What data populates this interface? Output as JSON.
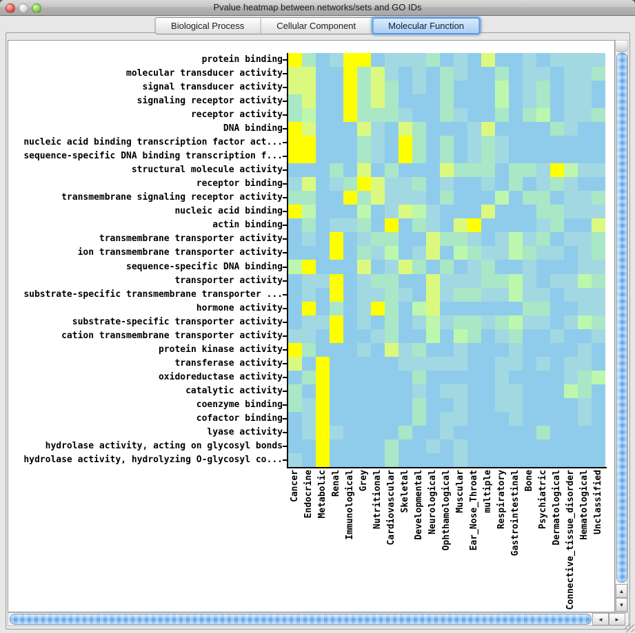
{
  "window": {
    "title": "Pvalue heatmap between networks/sets and GO IDs"
  },
  "tabs": [
    {
      "label": "Biological Process",
      "selected": false
    },
    {
      "label": "Cellular Component",
      "selected": false
    },
    {
      "label": "Molecular Function",
      "selected": true
    }
  ],
  "icons": {
    "up": "▲",
    "down": "▼",
    "left": "◄",
    "right": "►",
    "close": "close-circle",
    "minimize": "minimize-circle",
    "zoom": "zoom-circle"
  },
  "chart_data": {
    "type": "heatmap",
    "title": "Pvalue heatmap between networks/sets and GO IDs",
    "xlabel": "",
    "ylabel": "",
    "legend_position": "none",
    "grid": false,
    "palette": [
      "#8fccec",
      "#a2d8e2",
      "#a9e7c6",
      "#bdf7ae",
      "#dcf97f",
      "#ffff00"
    ],
    "palette_meaning": "0=low significance (blue) to 5=high significance (yellow)",
    "columns": [
      "Cancer",
      "Endocrine",
      "Metabolic",
      "Renal",
      "Immunological",
      "Grey",
      "Nutritional",
      "Cardiovascular",
      "Skeletal",
      "Developmental",
      "Neurological",
      "Ophthamological",
      "Muscular",
      "Ear_Nose_Throat",
      "multiple",
      "Respiratory",
      "Gastrointestinal",
      "Bone",
      "Psychiatric",
      "Dermatological",
      "Connective_tissue_disorder",
      "Hematological",
      "Unclassified"
    ],
    "rows": [
      "protein binding",
      "molecular transducer activity",
      "signal transducer activity",
      "signaling receptor activity",
      "receptor activity",
      "DNA binding",
      "nucleic acid binding transcription factor act...",
      "sequence-specific DNA binding transcription f...",
      "structural molecule activity",
      "receptor binding",
      "transmembrane signaling receptor activity",
      "nucleic acid binding",
      "actin binding",
      "transmembrane transporter activity",
      "ion transmembrane transporter activity",
      "sequence-specific DNA binding",
      "transporter activity",
      "substrate-specific transmembrane transporter ...",
      "hormone activity",
      "substrate-specific transporter activity",
      "cation transmembrane transporter activity",
      "protein kinase activity",
      "transferase activity",
      "oxidoreductase activity",
      "catalytic activity",
      "coenzyme binding",
      "cofactor binding",
      "lyase activity",
      "hydrolase activity, acting on glycosyl bonds",
      "hydrolase activity, hydrolyzing O-glycosyl co..."
    ],
    "cells": [
      [
        5,
        2,
        0,
        1,
        5,
        5,
        0,
        1,
        1,
        1,
        2,
        0,
        1,
        0,
        4,
        0,
        0,
        1,
        0,
        1,
        1,
        1,
        1
      ],
      [
        4,
        4,
        0,
        0,
        5,
        2,
        4,
        1,
        0,
        1,
        0,
        2,
        1,
        0,
        0,
        2,
        0,
        1,
        1,
        0,
        1,
        1,
        2
      ],
      [
        4,
        4,
        0,
        0,
        5,
        2,
        4,
        2,
        0,
        1,
        0,
        2,
        0,
        0,
        0,
        3,
        0,
        1,
        2,
        0,
        1,
        1,
        0
      ],
      [
        2,
        4,
        0,
        0,
        5,
        2,
        4,
        2,
        0,
        0,
        0,
        2,
        0,
        0,
        0,
        3,
        0,
        1,
        2,
        0,
        1,
        1,
        0
      ],
      [
        2,
        3,
        0,
        0,
        5,
        2,
        2,
        2,
        1,
        0,
        0,
        2,
        1,
        0,
        0,
        2,
        0,
        2,
        3,
        0,
        1,
        1,
        2
      ],
      [
        5,
        4,
        0,
        0,
        0,
        4,
        1,
        0,
        4,
        2,
        0,
        0,
        0,
        1,
        4,
        0,
        0,
        0,
        0,
        2,
        1,
        0,
        0
      ],
      [
        5,
        5,
        0,
        0,
        0,
        2,
        1,
        0,
        5,
        2,
        0,
        2,
        0,
        1,
        2,
        1,
        0,
        0,
        0,
        0,
        0,
        0,
        0
      ],
      [
        5,
        5,
        0,
        0,
        0,
        2,
        1,
        0,
        5,
        2,
        0,
        2,
        0,
        1,
        2,
        1,
        0,
        0,
        0,
        0,
        0,
        0,
        0
      ],
      [
        0,
        0,
        0,
        2,
        0,
        4,
        0,
        2,
        0,
        0,
        0,
        4,
        2,
        2,
        2,
        0,
        2,
        2,
        1,
        5,
        3,
        1,
        1
      ],
      [
        1,
        4,
        0,
        1,
        2,
        5,
        4,
        1,
        1,
        2,
        0,
        1,
        0,
        0,
        1,
        0,
        2,
        0,
        1,
        2,
        1,
        0,
        0
      ],
      [
        2,
        2,
        0,
        0,
        5,
        2,
        4,
        1,
        1,
        1,
        0,
        2,
        0,
        0,
        0,
        3,
        0,
        2,
        2,
        0,
        1,
        1,
        2
      ],
      [
        5,
        3,
        0,
        0,
        0,
        3,
        0,
        1,
        4,
        3,
        1,
        0,
        0,
        0,
        4,
        0,
        0,
        0,
        2,
        2,
        1,
        1,
        1
      ],
      [
        0,
        2,
        0,
        1,
        1,
        2,
        0,
        5,
        0,
        2,
        1,
        0,
        4,
        5,
        0,
        0,
        0,
        0,
        1,
        2,
        0,
        0,
        4
      ],
      [
        0,
        1,
        0,
        5,
        0,
        1,
        2,
        2,
        0,
        0,
        4,
        2,
        2,
        1,
        0,
        1,
        3,
        1,
        2,
        0,
        1,
        1,
        2
      ],
      [
        0,
        0,
        0,
        5,
        0,
        2,
        1,
        3,
        0,
        1,
        4,
        0,
        3,
        2,
        1,
        1,
        3,
        2,
        1,
        1,
        0,
        1,
        2
      ],
      [
        3,
        5,
        0,
        0,
        0,
        4,
        0,
        1,
        4,
        2,
        0,
        2,
        0,
        1,
        2,
        0,
        0,
        1,
        0,
        0,
        0,
        1,
        1
      ],
      [
        0,
        1,
        1,
        5,
        0,
        1,
        2,
        2,
        0,
        0,
        4,
        1,
        1,
        1,
        2,
        2,
        3,
        1,
        0,
        1,
        1,
        3,
        2
      ],
      [
        0,
        1,
        0,
        5,
        0,
        1,
        1,
        2,
        1,
        0,
        4,
        1,
        2,
        2,
        1,
        1,
        3,
        1,
        1,
        0,
        1,
        1,
        1
      ],
      [
        0,
        5,
        0,
        2,
        0,
        1,
        5,
        2,
        0,
        3,
        4,
        0,
        0,
        0,
        0,
        0,
        0,
        2,
        2,
        0,
        0,
        1,
        1
      ],
      [
        0,
        1,
        1,
        5,
        0,
        1,
        0,
        2,
        0,
        1,
        3,
        1,
        2,
        2,
        1,
        2,
        3,
        1,
        1,
        0,
        1,
        3,
        2
      ],
      [
        1,
        1,
        0,
        5,
        0,
        0,
        1,
        2,
        0,
        0,
        3,
        0,
        3,
        2,
        0,
        1,
        2,
        0,
        0,
        1,
        0,
        0,
        1
      ],
      [
        5,
        2,
        0,
        0,
        0,
        1,
        0,
        4,
        1,
        2,
        0,
        0,
        1,
        0,
        0,
        0,
        1,
        0,
        0,
        0,
        0,
        1,
        0
      ],
      [
        4,
        0,
        5,
        0,
        0,
        0,
        0,
        0,
        1,
        1,
        1,
        1,
        1,
        0,
        0,
        1,
        1,
        0,
        1,
        0,
        1,
        1,
        0
      ],
      [
        0,
        2,
        5,
        0,
        0,
        0,
        0,
        0,
        0,
        2,
        0,
        0,
        0,
        0,
        0,
        1,
        0,
        0,
        0,
        0,
        1,
        2,
        3
      ],
      [
        2,
        0,
        5,
        0,
        0,
        0,
        0,
        0,
        0,
        1,
        0,
        1,
        1,
        0,
        0,
        1,
        1,
        0,
        0,
        0,
        3,
        2,
        0
      ],
      [
        2,
        1,
        5,
        0,
        0,
        0,
        0,
        0,
        0,
        2,
        0,
        0,
        1,
        0,
        0,
        1,
        1,
        0,
        0,
        0,
        0,
        1,
        0
      ],
      [
        0,
        1,
        5,
        0,
        0,
        0,
        0,
        0,
        0,
        2,
        0,
        1,
        1,
        0,
        0,
        0,
        1,
        0,
        0,
        0,
        0,
        1,
        0
      ],
      [
        0,
        1,
        5,
        1,
        0,
        0,
        0,
        0,
        2,
        0,
        0,
        1,
        0,
        0,
        0,
        0,
        0,
        0,
        2,
        0,
        0,
        0,
        0
      ],
      [
        0,
        0,
        5,
        0,
        0,
        0,
        0,
        2,
        0,
        0,
        1,
        0,
        1,
        0,
        0,
        0,
        0,
        0,
        0,
        0,
        0,
        0,
        0
      ],
      [
        1,
        0,
        5,
        0,
        0,
        0,
        0,
        2,
        0,
        0,
        0,
        0,
        1,
        0,
        0,
        0,
        0,
        0,
        0,
        0,
        0,
        0,
        0
      ]
    ]
  }
}
